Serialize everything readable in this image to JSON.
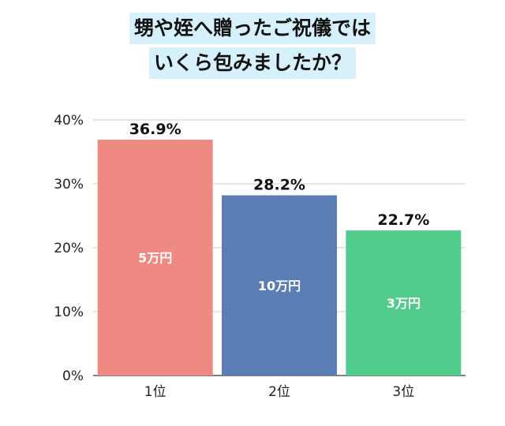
{
  "title_lines": [
    "甥や姪へ贈ったご祝儀では",
    "いくら包みましたか？"
  ],
  "chart_data": {
    "type": "bar",
    "title": "甥や姪へ贈ったご祝儀ではいくら包みましたか？",
    "categories": [
      "1位",
      "2位",
      "3位"
    ],
    "values": [
      36.9,
      28.2,
      22.7
    ],
    "value_labels": [
      "36.9%",
      "28.2%",
      "22.7%"
    ],
    "bar_labels": [
      "5万円",
      "10万円",
      "3万円"
    ],
    "colors": [
      "#ee8a82",
      "#5a7db5",
      "#52cc8c"
    ],
    "ylim": [
      0,
      40
    ],
    "yticks": [
      0,
      10,
      20,
      30,
      40
    ],
    "ytick_labels": [
      "0%",
      "10%",
      "20%",
      "30%",
      "40%"
    ],
    "grid": true,
    "xlabel": "",
    "ylabel": ""
  }
}
